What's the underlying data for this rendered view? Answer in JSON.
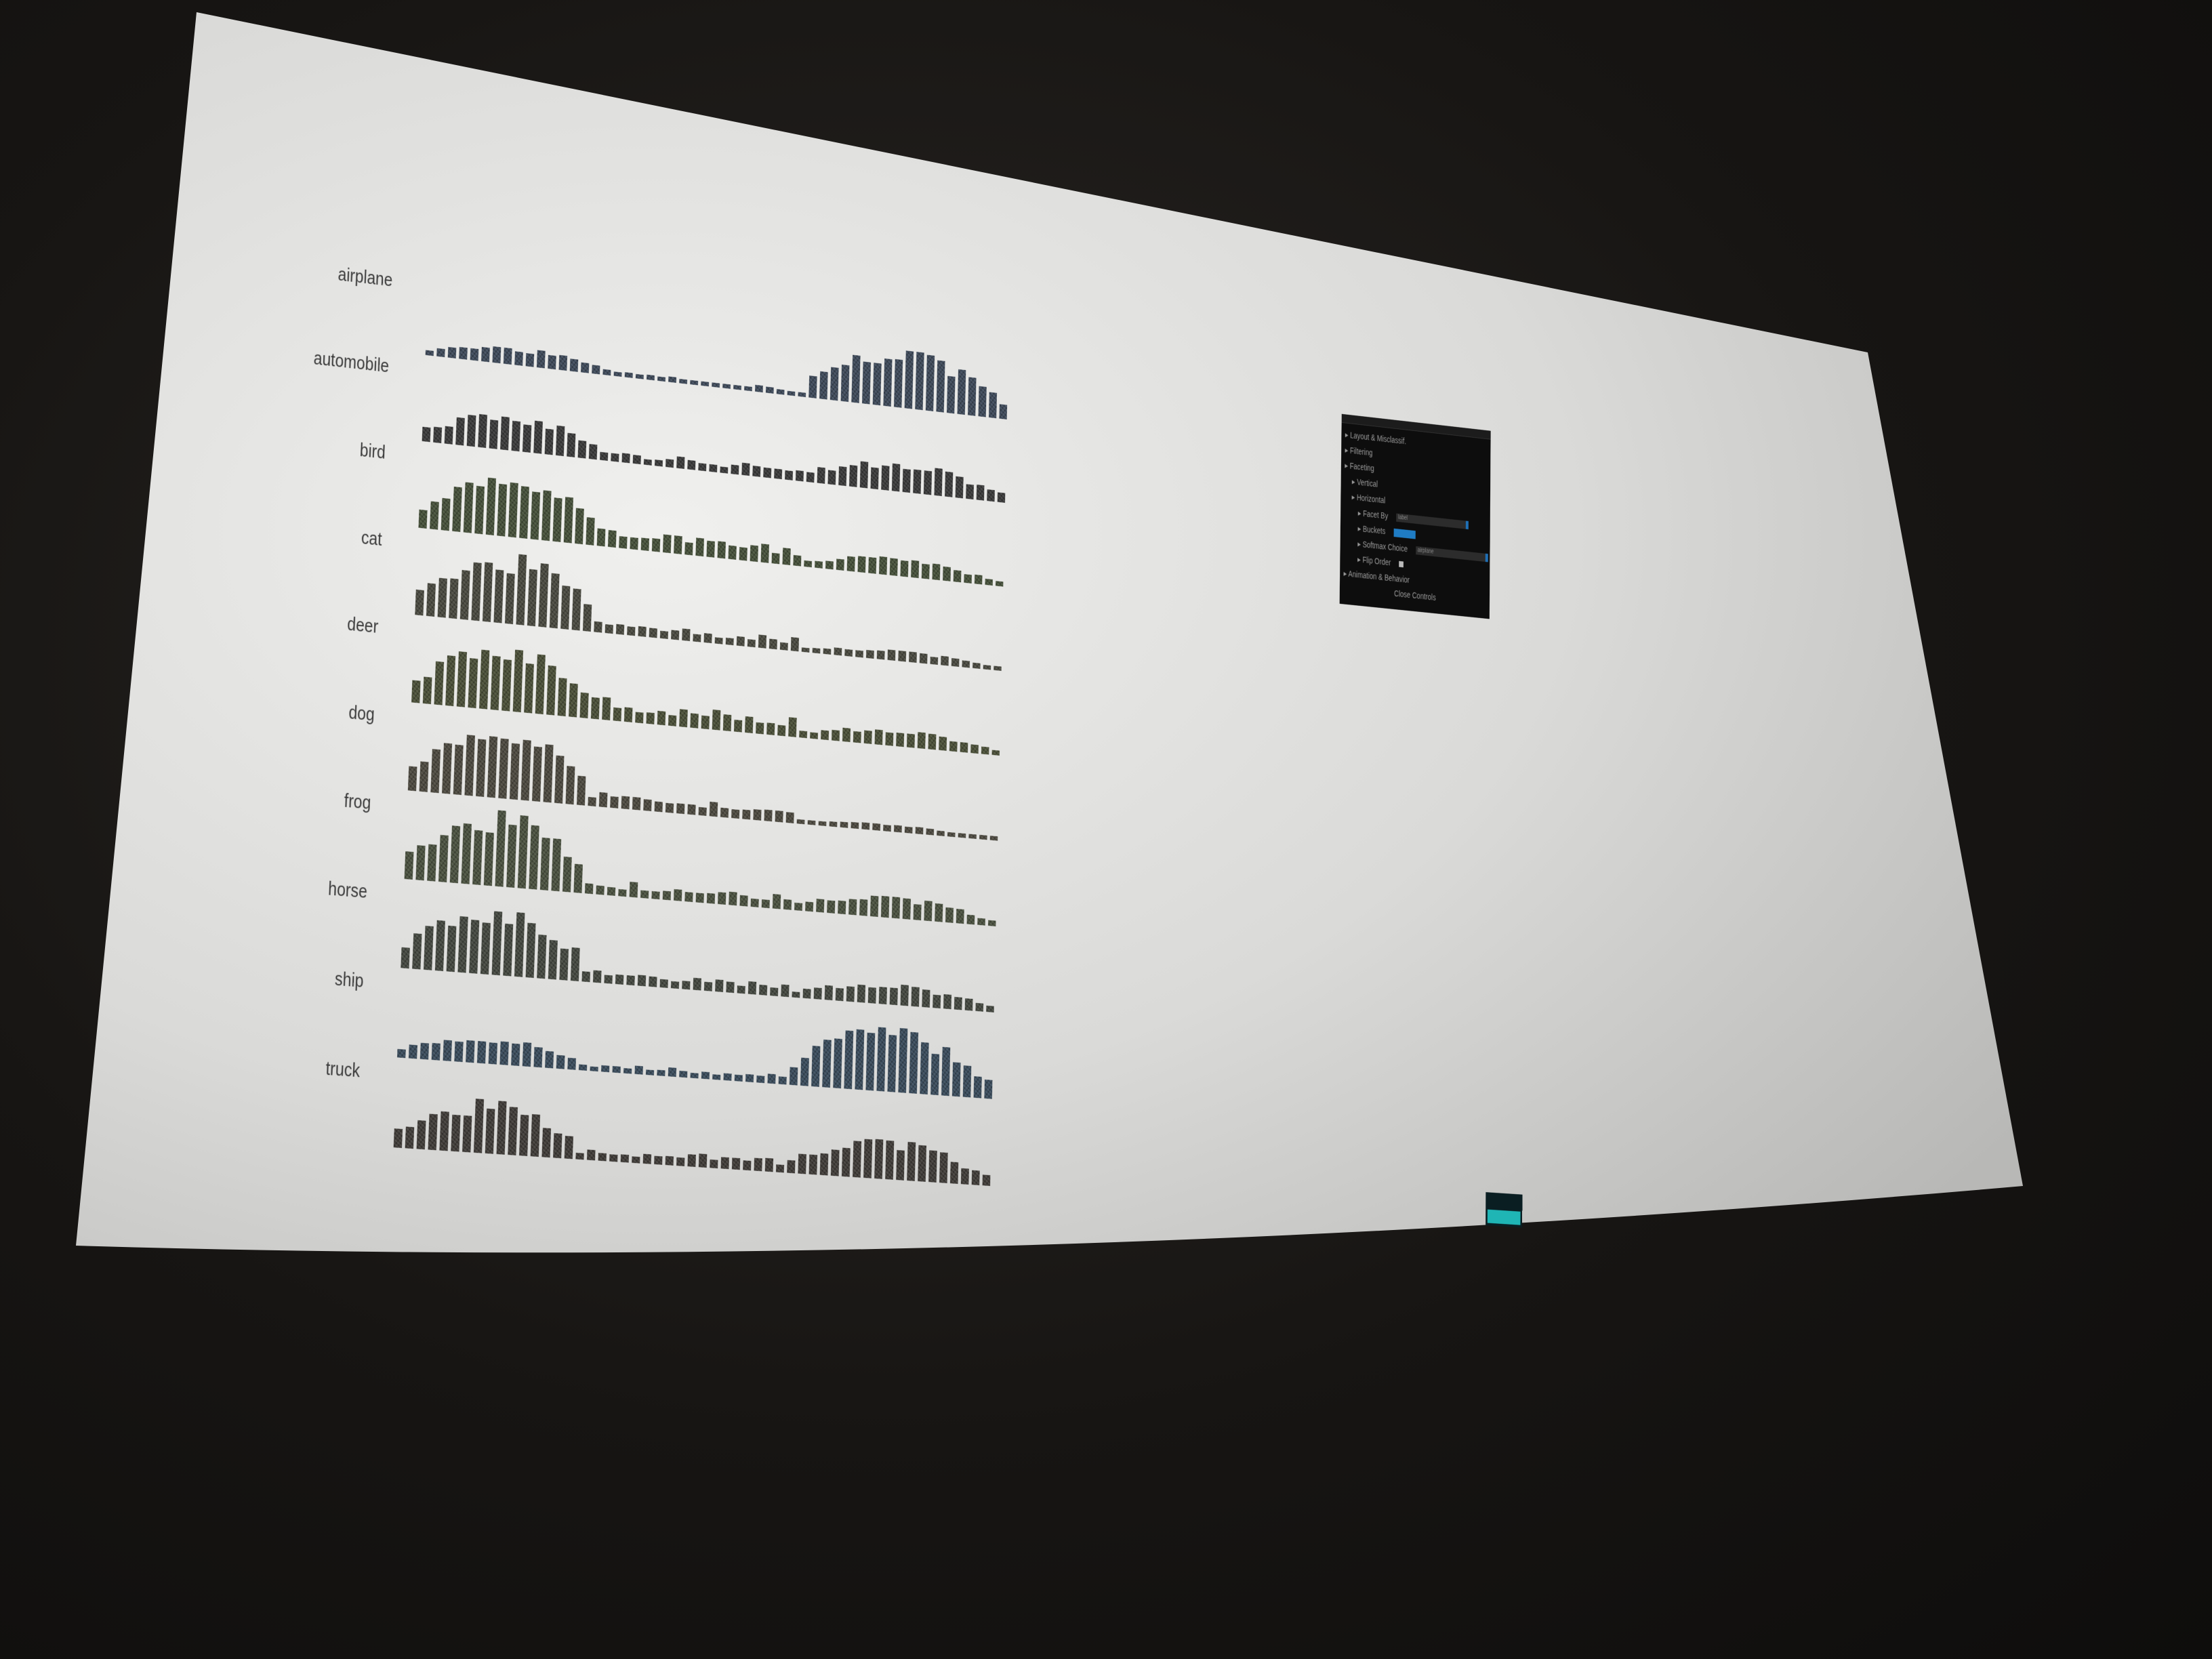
{
  "labels": [
    "airplane",
    "automobile",
    "bird",
    "cat",
    "deer",
    "dog",
    "frog",
    "horse",
    "ship",
    "truck"
  ],
  "distribution_shape": {
    "airplane": {
      "early": 0.25,
      "middle": 0.1,
      "late": 0.85
    },
    "automobile": {
      "early": 0.5,
      "middle": 0.2,
      "late": 0.45
    },
    "bird": {
      "early": 0.85,
      "middle": 0.3,
      "late": 0.25
    },
    "cat": {
      "early": 0.95,
      "middle": 0.2,
      "late": 0.15
    },
    "deer": {
      "early": 0.9,
      "middle": 0.35,
      "late": 0.25
    },
    "dog": {
      "early": 0.95,
      "middle": 0.25,
      "late": 0.1
    },
    "frog": {
      "early": 1.0,
      "middle": 0.25,
      "late": 0.3
    },
    "horse": {
      "early": 0.9,
      "middle": 0.25,
      "late": 0.3
    },
    "ship": {
      "early": 0.35,
      "middle": 0.15,
      "late": 0.9
    },
    "truck": {
      "early": 0.7,
      "middle": 0.2,
      "late": 0.55
    }
  },
  "bar_tints": {
    "airplane": "#3e4a5a",
    "automobile": "#3a3a3a",
    "bird": "#46513a",
    "cat": "#4a4a40",
    "deer": "#4b5038",
    "dog": "#4d4a40",
    "frog": "#4b5240",
    "horse": "#444840",
    "ship": "#3a4c5c",
    "truck": "#403c38"
  },
  "controls_panel": {
    "items": [
      {
        "label": "Layout & Misclassif.",
        "indent": 0
      },
      {
        "label": "Filtering",
        "indent": 0
      },
      {
        "label": "Faceting",
        "indent": 0
      },
      {
        "label": "Vertical",
        "indent": 1
      },
      {
        "label": "Horizontal",
        "indent": 1
      },
      {
        "label": "Facet By",
        "indent": 2,
        "control": "select",
        "value": "label"
      },
      {
        "label": "Buckets",
        "indent": 2,
        "control": "slider"
      },
      {
        "label": "Softmax Choice",
        "indent": 2,
        "control": "select",
        "value": "airplane"
      },
      {
        "label": "Flip Order",
        "indent": 2,
        "control": "checkbox"
      },
      {
        "label": "Animation & Behavior",
        "indent": 0
      }
    ],
    "close_label": "Close Controls",
    "colors": {
      "panel": "#0d0d0d",
      "accent": "#1f7cc4"
    }
  },
  "colors": {
    "screen": "#dcdcda",
    "room": "#141210",
    "fps_graph": "#1fb5b5"
  }
}
